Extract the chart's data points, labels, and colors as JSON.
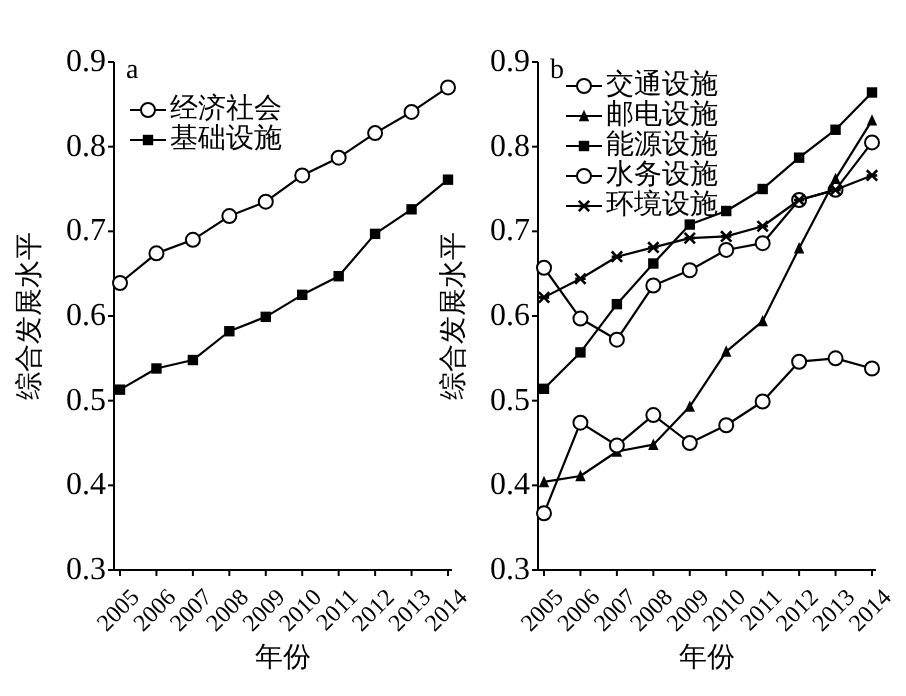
{
  "chart_data": [
    {
      "type": "line",
      "title": "a",
      "xlabel": "年份",
      "ylabel": "综合发展水平",
      "categories": [
        "2005",
        "2006",
        "2007",
        "2008",
        "2009",
        "2010",
        "2011",
        "2012",
        "2013",
        "2014"
      ],
      "ylim": [
        0.3,
        0.9
      ],
      "yticks": [
        0.3,
        0.4,
        0.5,
        0.6,
        0.7,
        0.8,
        0.9
      ],
      "grid": false,
      "legend": "top left",
      "line_style": "solid",
      "series": [
        {
          "name": "经济社会",
          "color": "#000000",
          "marker": "circle",
          "values": [
            0.639,
            0.674,
            0.69,
            0.718,
            0.735,
            0.766,
            0.787,
            0.816,
            0.841,
            0.87
          ]
        },
        {
          "name": "基础设施",
          "color": "#000000",
          "marker": "square",
          "values": [
            0.513,
            0.538,
            0.548,
            0.582,
            0.599,
            0.625,
            0.647,
            0.697,
            0.726,
            0.761
          ]
        }
      ]
    },
    {
      "type": "line",
      "title": "b",
      "xlabel": "年份",
      "ylabel": "综合发展水平",
      "categories": [
        "2005",
        "2006",
        "2007",
        "2008",
        "2009",
        "2010",
        "2011",
        "2012",
        "2013",
        "2014"
      ],
      "ylim": [
        0.3,
        0.9
      ],
      "yticks": [
        0.3,
        0.4,
        0.5,
        0.6,
        0.7,
        0.8,
        0.9
      ],
      "grid": false,
      "legend": "top left",
      "line_style": "solid",
      "series": [
        {
          "name": "交通设施",
          "color": "#000000",
          "marker": "circle",
          "values": [
            0.657,
            0.597,
            0.572,
            0.636,
            0.654,
            0.678,
            0.686,
            0.737,
            0.749,
            0.805
          ]
        },
        {
          "name": "邮电设施",
          "color": "#000000",
          "marker": "triangle",
          "values": [
            0.404,
            0.411,
            0.44,
            0.448,
            0.493,
            0.558,
            0.594,
            0.68,
            0.762,
            0.831
          ]
        },
        {
          "name": "能源设施",
          "color": "#000000",
          "marker": "square",
          "values": [
            0.514,
            0.557,
            0.614,
            0.662,
            0.708,
            0.724,
            0.75,
            0.787,
            0.82,
            0.864
          ]
        },
        {
          "name": "水务设施",
          "color": "#000000",
          "marker": "circle",
          "values": [
            0.367,
            0.474,
            0.447,
            0.483,
            0.45,
            0.471,
            0.499,
            0.546,
            0.55,
            0.538
          ]
        },
        {
          "name": "环境设施",
          "color": "#000000",
          "marker": "cross",
          "values": [
            0.622,
            0.644,
            0.67,
            0.681,
            0.692,
            0.694,
            0.706,
            0.737,
            0.749,
            0.766
          ]
        }
      ]
    }
  ]
}
